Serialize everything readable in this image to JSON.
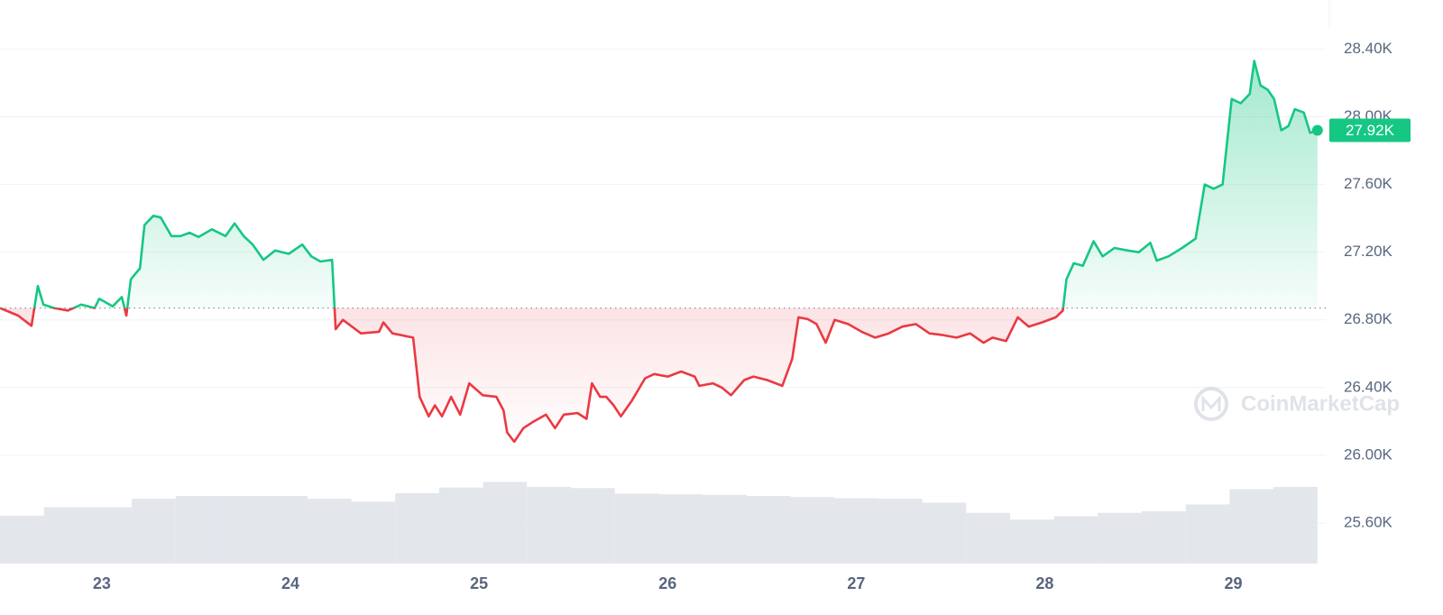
{
  "chart_data": {
    "type": "line",
    "x": [
      22.46,
      22.556,
      22.627,
      22.661,
      22.69,
      22.747,
      22.819,
      22.891,
      22.962,
      22.986,
      23.058,
      23.106,
      23.13,
      23.154,
      23.202,
      23.226,
      23.273,
      23.312,
      23.369,
      23.417,
      23.465,
      23.513,
      23.584,
      23.656,
      23.704,
      23.752,
      23.8,
      23.857,
      23.919,
      23.991,
      24.063,
      24.111,
      24.159,
      24.221,
      24.24,
      24.278,
      24.374,
      24.47,
      24.493,
      24.541,
      24.651,
      24.685,
      24.733,
      24.766,
      24.804,
      24.852,
      24.9,
      24.948,
      25.02,
      25.092,
      25.13,
      25.149,
      25.187,
      25.235,
      25.283,
      25.355,
      25.403,
      25.45,
      25.522,
      25.57,
      25.599,
      25.642,
      25.675,
      25.714,
      25.752,
      25.809,
      25.881,
      25.929,
      26.001,
      26.072,
      26.144,
      26.168,
      26.24,
      26.288,
      26.336,
      26.407,
      26.455,
      26.527,
      26.608,
      26.661,
      26.694,
      26.742,
      26.79,
      26.838,
      26.886,
      26.958,
      27.029,
      27.101,
      27.173,
      27.245,
      27.317,
      27.388,
      27.46,
      27.532,
      27.604,
      27.675,
      27.723,
      27.795,
      27.857,
      27.915,
      27.986,
      28.058,
      28.096,
      28.115,
      28.154,
      28.202,
      28.259,
      28.307,
      28.369,
      28.441,
      28.498,
      28.56,
      28.594,
      28.656,
      28.728,
      28.8,
      28.848,
      28.895,
      28.943,
      28.991,
      29.039,
      29.087,
      29.111,
      29.144,
      29.182,
      29.216,
      29.254,
      29.292,
      29.326,
      29.374,
      29.407,
      29.446
    ],
    "values": [
      26870,
      26825,
      26765,
      27000,
      26890,
      26870,
      26855,
      26890,
      26870,
      26925,
      26880,
      26935,
      26825,
      27040,
      27105,
      27360,
      27415,
      27405,
      27295,
      27295,
      27315,
      27290,
      27335,
      27295,
      27370,
      27295,
      27245,
      27155,
      27210,
      27190,
      27245,
      27175,
      27145,
      27155,
      26745,
      26800,
      26720,
      26730,
      26785,
      26720,
      26695,
      26345,
      26230,
      26295,
      26230,
      26345,
      26240,
      26425,
      26355,
      26345,
      26265,
      26135,
      26080,
      26160,
      26195,
      26240,
      26160,
      26240,
      26250,
      26215,
      26425,
      26345,
      26345,
      26295,
      26230,
      26320,
      26455,
      26480,
      26465,
      26495,
      26465,
      26410,
      26425,
      26400,
      26355,
      26445,
      26465,
      26445,
      26410,
      26570,
      26815,
      26805,
      26775,
      26665,
      26800,
      26775,
      26730,
      26695,
      26720,
      26760,
      26775,
      26720,
      26710,
      26695,
      26720,
      26665,
      26695,
      26675,
      26815,
      26760,
      26785,
      26815,
      26855,
      27040,
      27135,
      27120,
      27265,
      27175,
      27225,
      27210,
      27200,
      27255,
      27150,
      27175,
      27225,
      27280,
      27600,
      27575,
      27600,
      28105,
      28080,
      28135,
      28330,
      28185,
      28160,
      28105,
      27920,
      27945,
      28045,
      28025,
      27905,
      27920
    ],
    "up_color": "#16c784",
    "down_color": "#ea3943",
    "baseline": 26870,
    "current_price": 27920,
    "current_price_label": "27.92K",
    "volume": {
      "values": [
        8.5,
        10,
        10,
        11.5,
        12,
        12,
        12,
        11.5,
        11,
        12.5,
        13.5,
        14.5,
        13.6,
        13.4,
        12.4,
        12.3,
        12.2,
        12,
        11.8,
        11.6,
        11.5,
        10.8,
        9,
        7.8,
        8.4,
        9,
        9.3,
        10.5,
        13.2,
        13.6
      ],
      "ylim": [
        0,
        100
      ],
      "color": "#e3e6eb"
    },
    "xlim": [
      22.46,
      29.49
    ],
    "xticks": [
      23,
      24,
      25,
      26,
      27,
      28,
      29
    ],
    "ylim": [
      25360,
      28690
    ],
    "yticks": [
      {
        "value": 25600,
        "label": "25.60K"
      },
      {
        "value": 26000,
        "label": "26.00K"
      },
      {
        "value": 26400,
        "label": "26.40K"
      },
      {
        "value": 26800,
        "label": "26.80K"
      },
      {
        "value": 27200,
        "label": "27.20K"
      },
      {
        "value": 27600,
        "label": "27.60K"
      },
      {
        "value": 28000,
        "label": "28.00K"
      },
      {
        "value": 28400,
        "label": "28.40K"
      }
    ],
    "grid": true,
    "watermark": "CoinMarketCap"
  }
}
